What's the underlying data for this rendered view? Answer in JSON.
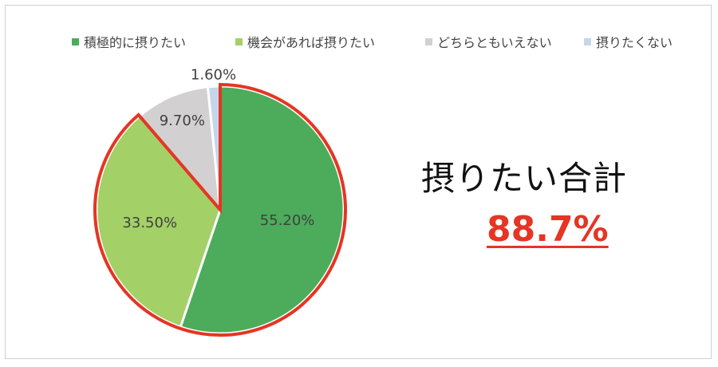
{
  "chart_data": {
    "type": "pie",
    "title": "",
    "categories": [
      "積極的に摂りたい",
      "機会があれば摂りたい",
      "どちらともいえない",
      "摂りたくない"
    ],
    "values": [
      55.2,
      33.5,
      9.7,
      1.6
    ],
    "value_labels": [
      "55.20%",
      "33.50%",
      "9.70%",
      "1.60%"
    ],
    "colors": [
      "#4cac5b",
      "#a3d067",
      "#d2d0d0",
      "#c6d6ea"
    ],
    "highlight_color": "#e53524",
    "highlighted_categories": [
      "積極的に摂りたい",
      "機会があれば摂りたい"
    ],
    "legend_position": "top",
    "start": "12 o'clock",
    "direction": "clockwise"
  },
  "summary": {
    "label": "摂りたい合計",
    "value": "88.7%"
  }
}
